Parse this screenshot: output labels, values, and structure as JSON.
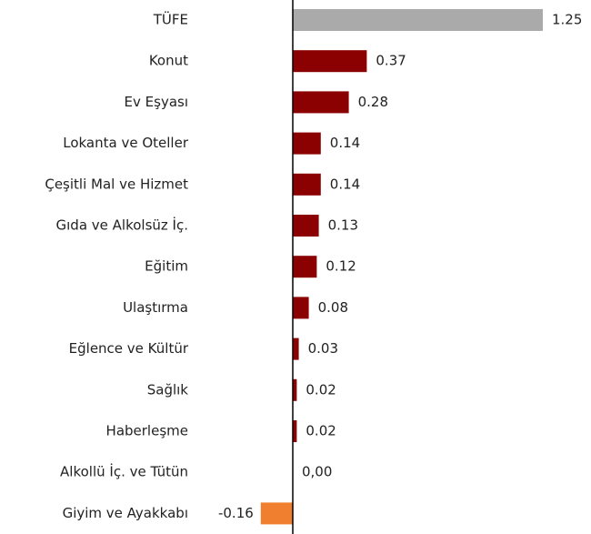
{
  "chart_data": {
    "type": "barh",
    "categories": [
      "TÜFE",
      "Konut",
      "Ev Eşyası",
      "Lokanta ve Oteller",
      "Çeşitli Mal ve Hizmet",
      "Gıda ve Alkolsüz İç.",
      "Eğitim",
      "Ulaştırma",
      "Eğlence ve Kültür",
      "Sağlık",
      "Haberleşme",
      "Alkollü İç. ve Tütün",
      "Giyim ve Ayakkabı"
    ],
    "values": [
      1.25,
      0.37,
      0.28,
      0.14,
      0.14,
      0.13,
      0.12,
      0.08,
      0.03,
      0.02,
      0.02,
      0,
      -0.16
    ],
    "value_labels": [
      "1.25",
      "0.37",
      "0.28",
      "0.14",
      "0.14",
      "0.13",
      "0.12",
      "0.08",
      "0.03",
      "0.02",
      "0.02",
      "0,00",
      "-0.16"
    ],
    "colors": [
      "#aaaaaa",
      "#8b0000",
      "#8b0000",
      "#8b0000",
      "#8b0000",
      "#8b0000",
      "#8b0000",
      "#8b0000",
      "#8b0000",
      "#8b0000",
      "#8b0000",
      "#8b0000",
      "#f08030"
    ],
    "xlim": [
      -1.4636,
      1.4909
    ]
  }
}
